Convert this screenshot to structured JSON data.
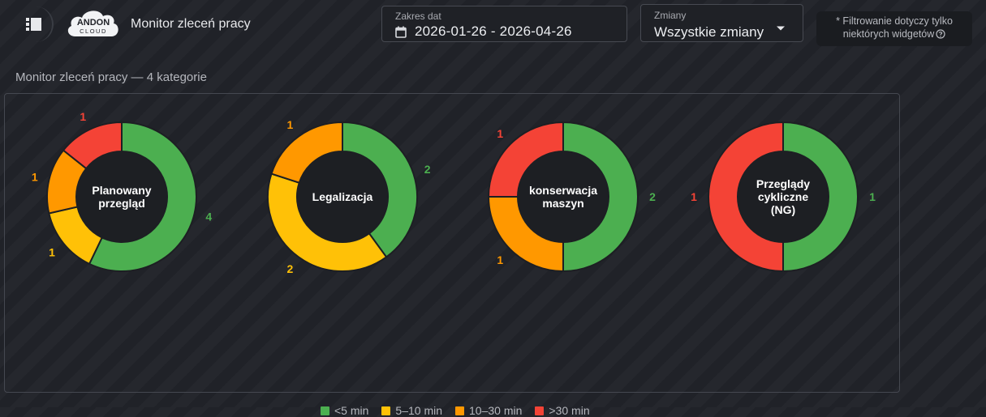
{
  "header": {
    "app_title": "Monitor zleceń pracy",
    "logo_text": [
      "ANDON",
      "CLOUD"
    ],
    "date_range_label": "Zakres dat",
    "date_range_value": "2026-01-26 - 2026-04-26",
    "shifts_label": "Zmiany",
    "shifts_value": "Wszystkie zmiany",
    "filter_note_line1": "* Filtrowanie dotyczy tylko",
    "filter_note_line2": "niektórych widgetów"
  },
  "icons": [
    "menu-icon",
    "calendar-icon",
    "chevron-down-icon",
    "info-icon"
  ],
  "section_title": "Monitor zleceń pracy — 4 kategorie",
  "colors": {
    "lt5": "#4caf50",
    "5to10": "#ffc107",
    "10to30": "#ff9800",
    "gt30": "#f44336",
    "hole": "#1d1f23"
  },
  "chart_data": [
    {
      "type": "pie",
      "variant": "donut",
      "center_label": [
        "Planowany",
        "przegląd"
      ],
      "categories": [
        "<5 min",
        "5–10 min",
        "10–30 min",
        ">30 min"
      ],
      "values": [
        4,
        1,
        1,
        1
      ]
    },
    {
      "type": "pie",
      "variant": "donut",
      "center_label": [
        "Legalizacja"
      ],
      "categories": [
        "<5 min",
        "5–10 min",
        "10–30 min",
        ">30 min"
      ],
      "values": [
        2,
        2,
        1,
        0
      ]
    },
    {
      "type": "pie",
      "variant": "donut",
      "center_label": [
        "konserwacja",
        "maszyn"
      ],
      "categories": [
        "<5 min",
        "5–10 min",
        "10–30 min",
        ">30 min"
      ],
      "values": [
        2,
        0,
        1,
        1
      ]
    },
    {
      "type": "pie",
      "variant": "donut",
      "center_label": [
        "Przeglądy",
        "cykliczne",
        "(NG)"
      ],
      "categories": [
        "<5 min",
        "5–10 min",
        "10–30 min",
        ">30 min"
      ],
      "values": [
        1,
        0,
        0,
        1
      ]
    }
  ],
  "legend": [
    {
      "label": "<5 min",
      "color": "#4caf50"
    },
    {
      "label": "5–10 min",
      "color": "#ffc107"
    },
    {
      "label": "10–30 min",
      "color": "#ff9800"
    },
    {
      "label": ">30 min",
      "color": "#f44336"
    }
  ]
}
